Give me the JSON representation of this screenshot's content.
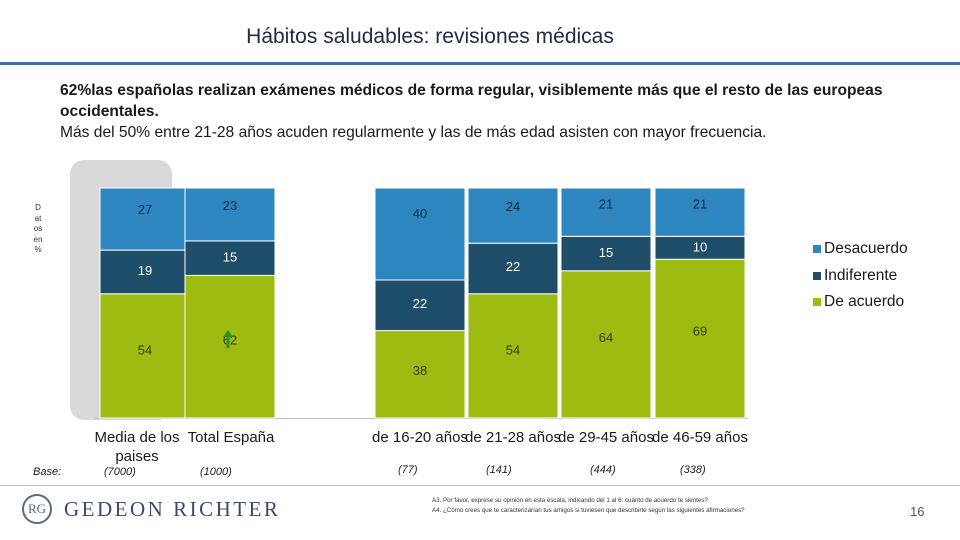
{
  "header": {
    "title": "Hábitos saludables:  revisiones médicas",
    "lead_line1": "62%las españolas realizan exámenes médicos de forma regular, visiblemente más que el resto de las europeas occidentales.",
    "lead_line2": "Más del 50% entre 21-28 años acuden regularmente y las de más edad asisten con mayor frecuencia."
  },
  "side_label": "Datos en %",
  "chart_data": {
    "type": "bar",
    "stacked": true,
    "percent_scale": 100,
    "categories": [
      "Media de los paises",
      "Total España",
      "de 16-20 años",
      "de 21-28 años",
      "de 29-45 años",
      "de 46-59 años"
    ],
    "bases": [
      "(7000)",
      "(1000)",
      "(77)",
      "(141)",
      "(444)",
      "(338)"
    ],
    "base_label": "Base:",
    "series": [
      {
        "name": "De acuerdo",
        "color": "#9dbb10",
        "values": [
          54,
          62,
          38,
          54,
          64,
          69
        ]
      },
      {
        "name": "Indiferente",
        "color": "#1f4e6b",
        "values": [
          19,
          15,
          22,
          22,
          15,
          10
        ]
      },
      {
        "name": "Desacuerdo",
        "color": "#2e86c1",
        "values": [
          27,
          23,
          40,
          24,
          21,
          21
        ]
      }
    ],
    "highlighted_category": "Media de los paises",
    "highlight_color": "#d9d9d9",
    "up_arrow_on": "Total España",
    "up_arrow_color": "#2f8f2f"
  },
  "legend_order": [
    "Desacuerdo",
    "Indiferente",
    "De acuerdo"
  ],
  "logo": {
    "mark": "RG",
    "name": "GEDEON RICHTER"
  },
  "footnote": {
    "line1": "A3. Por favor, exprese su opinión en esta escala, indicando del 1 al 6: cuánto de acuerdo te sientes?",
    "line2": "A4. ¿Cómo crees que te caracterizarían tus amigos si tuviesen que describirte según las siguientes afirmaciones?"
  },
  "page_number": "16"
}
